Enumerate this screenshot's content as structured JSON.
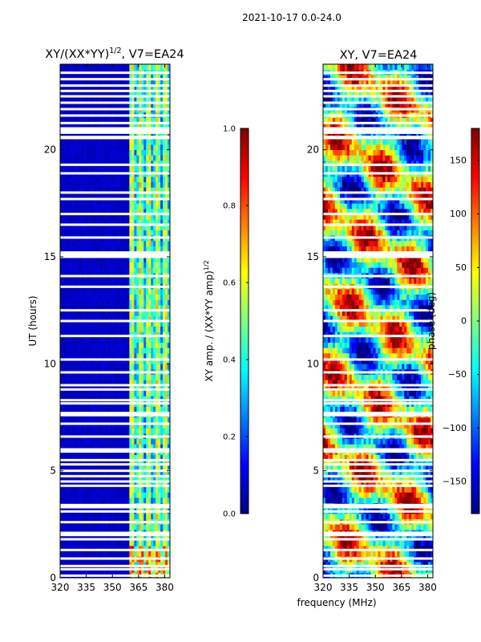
{
  "suptitle": "2021-10-17 0.0-24.0",
  "chart_data": [
    {
      "type": "heatmap",
      "title_main": "XY/(XX*YY)",
      "title_sup": "1/2",
      "title_tail": ", V7=EA24",
      "xlabel": "",
      "ylabel": "UT (hours)",
      "xlim": [
        320,
        383
      ],
      "ylim": [
        0,
        24
      ],
      "xticks": [
        "320",
        "335",
        "350",
        "365",
        "380"
      ],
      "xtick_values": [
        320,
        335,
        350,
        365,
        380
      ],
      "yticks": [
        "0",
        "5",
        "10",
        "15",
        "20"
      ],
      "ytick_values": [
        0,
        5,
        10,
        15,
        20
      ],
      "colorbar": {
        "label_main": "XY amp. / (XX*YY amp)",
        "label_sup": "1/2",
        "range": [
          0.0,
          1.0
        ],
        "ticks": [
          "0.0",
          "0.2",
          "0.4",
          "0.6",
          "0.8",
          "1.0"
        ],
        "tick_values": [
          0.0,
          0.2,
          0.4,
          0.6,
          0.8,
          1.0
        ]
      },
      "description_bands": {
        "low_band_MHz": [
          320,
          360
        ],
        "high_band_MHz": [
          360,
          383
        ],
        "low_band_level": 0.05,
        "high_band_level": 0.45
      }
    },
    {
      "type": "heatmap",
      "title": "XY, V7=EA24",
      "xlabel": "frequency (MHz)",
      "ylabel": "",
      "xlim": [
        320,
        383
      ],
      "ylim": [
        0,
        24
      ],
      "xticks": [
        "320",
        "335",
        "350",
        "365",
        "380"
      ],
      "xtick_values": [
        320,
        335,
        350,
        365,
        380
      ],
      "yticks": [
        "0",
        "5",
        "10",
        "15",
        "20"
      ],
      "ytick_values": [
        0,
        5,
        10,
        15,
        20
      ],
      "colorbar": {
        "label": "phase (deg)",
        "range": [
          -180,
          180
        ],
        "ticks": [
          "−150",
          "−100",
          "−50",
          "0",
          "50",
          "100",
          "150"
        ],
        "tick_values": [
          -150,
          -100,
          -50,
          0,
          50,
          100,
          150
        ]
      }
    }
  ],
  "flag_rows_hours": [
    23.6,
    23.3,
    23.0,
    22.75,
    22.5,
    22.2,
    21.9,
    21.6,
    21.25,
    21.0,
    20.9,
    20.8,
    20.6,
    20.55,
    19.3,
    18.9,
    18.0,
    17.7,
    17.0,
    16.5,
    15.9,
    15.2,
    15.1,
    15.0,
    14.1,
    13.6,
    12.5,
    12.0,
    11.3,
    10.2,
    9.6,
    9.0,
    8.8,
    8.3,
    8.15,
    7.7,
    7.6,
    7.2,
    6.6,
    6.0,
    5.9,
    5.5,
    5.3,
    5.0,
    4.75,
    4.5,
    4.3,
    3.4,
    3.3,
    3.1,
    2.6,
    2.1,
    2.0,
    1.8,
    1.3,
    0.9,
    0.55,
    0.4,
    0.1
  ],
  "colormap": [
    "#00007f",
    "#0000ff",
    "#007fff",
    "#00ffff",
    "#7fff7f",
    "#ffff00",
    "#ff7f00",
    "#ff0000",
    "#7f0000"
  ]
}
